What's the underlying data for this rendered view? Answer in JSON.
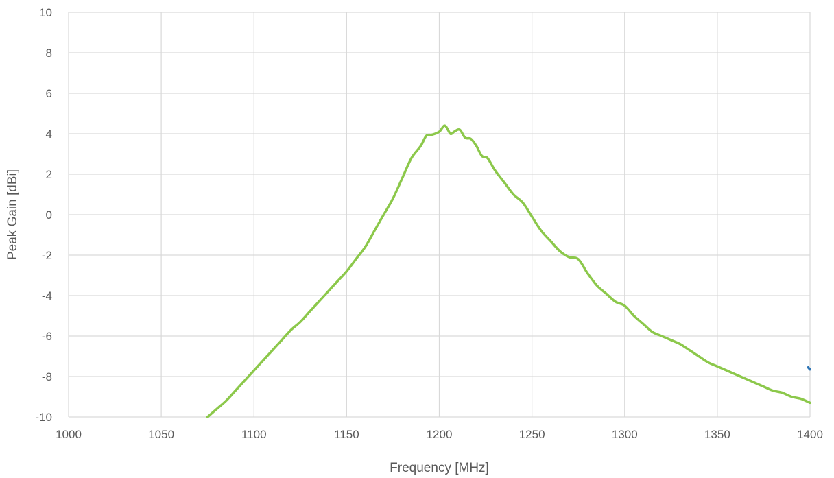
{
  "chart_data": {
    "type": "line",
    "title": "",
    "xlabel": "Frequency [MHz]",
    "ylabel": "Peak Gain [dBi]",
    "xlim": [
      1000,
      1400
    ],
    "ylim": [
      -10,
      10
    ],
    "xticks": [
      1000,
      1050,
      1100,
      1150,
      1200,
      1250,
      1300,
      1350,
      1400
    ],
    "yticks": [
      -10,
      -8,
      -6,
      -4,
      -2,
      0,
      2,
      4,
      6,
      8,
      10
    ],
    "grid": true,
    "legend": "none",
    "series": [
      {
        "color": "#8cc84b",
        "x": [
          1075,
          1080,
          1085,
          1090,
          1095,
          1100,
          1105,
          1110,
          1115,
          1120,
          1125,
          1130,
          1135,
          1140,
          1145,
          1150,
          1155,
          1160,
          1165,
          1170,
          1175,
          1180,
          1185,
          1190,
          1193,
          1196,
          1200,
          1203,
          1206,
          1208,
          1211,
          1214,
          1217,
          1220,
          1223,
          1226,
          1230,
          1235,
          1240,
          1245,
          1250,
          1255,
          1260,
          1265,
          1270,
          1275,
          1280,
          1285,
          1290,
          1295,
          1300,
          1305,
          1310,
          1315,
          1320,
          1325,
          1330,
          1335,
          1340,
          1345,
          1350,
          1355,
          1360,
          1365,
          1370,
          1375,
          1380,
          1385,
          1390,
          1395,
          1400
        ],
        "y": [
          -10.0,
          -9.6,
          -9.2,
          -8.7,
          -8.2,
          -7.7,
          -7.2,
          -6.7,
          -6.2,
          -5.7,
          -5.3,
          -4.8,
          -4.3,
          -3.8,
          -3.3,
          -2.8,
          -2.2,
          -1.6,
          -0.8,
          0.0,
          0.8,
          1.8,
          2.8,
          3.4,
          3.9,
          3.95,
          4.1,
          4.4,
          4.0,
          4.1,
          4.2,
          3.8,
          3.75,
          3.4,
          2.9,
          2.8,
          2.2,
          1.6,
          1.0,
          0.6,
          -0.1,
          -0.8,
          -1.3,
          -1.8,
          -2.1,
          -2.2,
          -2.9,
          -3.5,
          -3.9,
          -4.3,
          -4.5,
          -5.0,
          -5.4,
          -5.8,
          -6.0,
          -6.2,
          -6.4,
          -6.7,
          -7.0,
          -7.3,
          -7.5,
          -7.7,
          -7.9,
          -8.1,
          -8.3,
          -8.5,
          -8.7,
          -8.8,
          -9.0,
          -9.1,
          -9.3
        ]
      },
      {
        "color": "#2e75b6",
        "x": [
          1399,
          1400
        ],
        "y": [
          -7.55,
          -7.65
        ]
      }
    ]
  }
}
